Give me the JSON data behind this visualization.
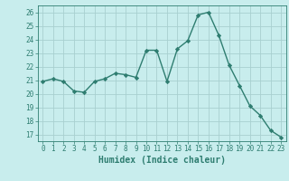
{
  "x": [
    0,
    1,
    2,
    3,
    4,
    5,
    6,
    7,
    8,
    9,
    10,
    11,
    12,
    13,
    14,
    15,
    16,
    17,
    18,
    19,
    20,
    21,
    22,
    23
  ],
  "y": [
    20.9,
    21.1,
    20.9,
    20.2,
    20.1,
    20.9,
    21.1,
    21.5,
    21.4,
    21.2,
    23.2,
    23.2,
    20.9,
    23.3,
    23.9,
    25.8,
    26.0,
    24.3,
    22.1,
    20.6,
    19.1,
    18.4,
    17.3,
    16.8
  ],
  "line_color": "#2e7d70",
  "marker": "D",
  "marker_size": 2.2,
  "bg_color": "#c8eded",
  "grid_color": "#a8d0d0",
  "xlabel": "Humidex (Indice chaleur)",
  "ylim": [
    16.5,
    26.5
  ],
  "xlim": [
    -0.5,
    23.5
  ],
  "yticks": [
    17,
    18,
    19,
    20,
    21,
    22,
    23,
    24,
    25,
    26
  ],
  "xticks": [
    0,
    1,
    2,
    3,
    4,
    5,
    6,
    7,
    8,
    9,
    10,
    11,
    12,
    13,
    14,
    15,
    16,
    17,
    18,
    19,
    20,
    21,
    22,
    23
  ],
  "tick_fontsize": 5.5,
  "label_fontsize": 7.0,
  "line_width": 1.0
}
